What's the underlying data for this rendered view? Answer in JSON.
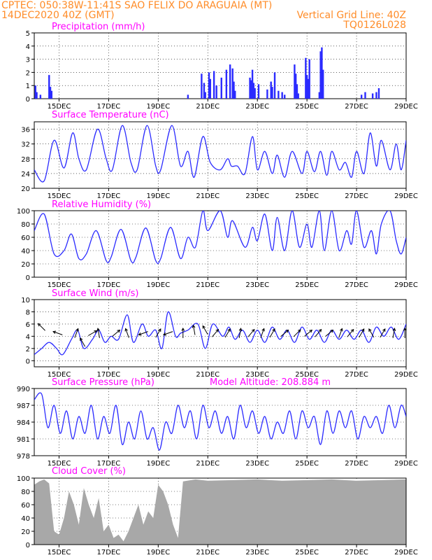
{
  "header": {
    "left_line1": "CPTEC:  050:38W-11:41S  SAO FELIX DO ARAGUAIA (MT)",
    "left_line2": "14DEC2020 40Z (GMT)",
    "right_line2": "Vertical Grid Line: 40Z",
    "right_line3": "TQ0126L028"
  },
  "colors": {
    "header": "#ff8c28",
    "panel_title": "#ff00ff",
    "series": "#2b2bff",
    "cloud_fill": "#a8a8a8",
    "precip_bar": "#2b2bff",
    "arrow": "#000000"
  },
  "x_ticks": [
    "15DEC",
    "17DEC",
    "19DEC",
    "21DEC",
    "23DEC",
    "25DEC",
    "27DEC",
    "29DEC"
  ],
  "x_start_day": 14.0,
  "x_end_day": 29.0,
  "x_tick_days": [
    15,
    17,
    19,
    21,
    23,
    25,
    27,
    29
  ],
  "panels": {
    "precip": {
      "title": "Precipitation (mm/h)",
      "yticks": [
        "0",
        "1",
        "2",
        "3",
        "4",
        "5"
      ],
      "ylim": [
        0,
        5
      ]
    },
    "temp": {
      "title": "Surface Temperature (nC)",
      "yticks": [
        "20",
        "24",
        "28",
        "32",
        "36"
      ],
      "ylim": [
        20,
        38
      ]
    },
    "rh": {
      "title": "Relative Humidity (%)",
      "yticks": [
        "0",
        "20",
        "40",
        "60",
        "80",
        "100"
      ],
      "ylim": [
        0,
        100
      ]
    },
    "wind": {
      "title": "Surface Wind (m/s)",
      "yticks": [
        "0",
        "2",
        "4",
        "6",
        "8",
        "10"
      ],
      "ylim": [
        -1,
        10
      ]
    },
    "pres": {
      "title": "Surface Pressure (hPa)",
      "subtitle": "Model Altitude: 208.884 m",
      "yticks": [
        "978",
        "981",
        "984",
        "987",
        "990"
      ],
      "ylim": [
        978,
        990
      ]
    },
    "cloud": {
      "title": "Cloud Cover (%)",
      "yticks": [
        "0",
        "20",
        "40",
        "60",
        "80",
        "100"
      ],
      "ylim": [
        0,
        100
      ]
    }
  },
  "chart_data": [
    {
      "type": "bar",
      "title": "Precipitation (mm/h)",
      "x_unit": "day of December 2020",
      "x": [
        14.05,
        14.1,
        14.25,
        14.6,
        14.65,
        14.7,
        20.2,
        20.75,
        20.85,
        20.9,
        21.05,
        21.1,
        21.25,
        21.35,
        21.55,
        21.75,
        21.9,
        22.0,
        22.05,
        22.1,
        22.7,
        22.75,
        22.8,
        22.85,
        22.9,
        23.05,
        23.4,
        23.55,
        23.6,
        23.7,
        23.85,
        24.0,
        24.1,
        24.5,
        24.55,
        24.6,
        24.65,
        24.95,
        25.0,
        25.05,
        25.1,
        25.5,
        25.55,
        25.6,
        25.65,
        27.2,
        27.35,
        27.65,
        27.8,
        27.9
      ],
      "values": [
        1.0,
        0.5,
        0.3,
        1.8,
        0.9,
        0.6,
        0.3,
        1.9,
        1.2,
        0.5,
        2.0,
        1.5,
        2.1,
        1.0,
        1.6,
        2.2,
        2.6,
        2.3,
        1.3,
        0.6,
        1.6,
        1.4,
        2.2,
        1.2,
        0.8,
        1.1,
        0.7,
        1.3,
        0.9,
        2.0,
        0.6,
        0.5,
        0.3,
        2.6,
        1.9,
        1.1,
        0.4,
        3.1,
        1.8,
        1.5,
        3.0,
        0.5,
        3.6,
        3.9,
        2.2,
        0.3,
        0.5,
        0.4,
        0.5,
        0.8
      ],
      "ylim": [
        0,
        5
      ]
    },
    {
      "type": "line",
      "title": "Surface Temperature (nC)",
      "x": [
        14.0,
        14.4,
        14.8,
        15.2,
        15.55,
        15.8,
        16.1,
        16.55,
        16.9,
        17.15,
        17.55,
        17.9,
        18.15,
        18.55,
        18.9,
        19.1,
        19.55,
        19.9,
        20.2,
        20.45,
        20.8,
        21.1,
        21.5,
        21.8,
        21.95,
        22.2,
        22.5,
        22.8,
        23.0,
        23.3,
        23.6,
        23.8,
        24.1,
        24.4,
        24.8,
        25.0,
        25.3,
        25.55,
        25.8,
        26.0,
        26.3,
        26.55,
        26.8,
        27.0,
        27.3,
        27.55,
        27.8,
        28.0,
        28.35,
        28.6,
        28.8,
        29.0
      ],
      "values": [
        25,
        22,
        33,
        25.5,
        35,
        28,
        25,
        36,
        28,
        25,
        37,
        27,
        25,
        37,
        26,
        25,
        37,
        26,
        30,
        23,
        34,
        27,
        25,
        28,
        26,
        26,
        24,
        34,
        25,
        30,
        24,
        29,
        23,
        30,
        24,
        30,
        24.5,
        30,
        23.5,
        30,
        25,
        27,
        23,
        30,
        24,
        35,
        26,
        33,
        25,
        32,
        25,
        33
      ],
      "ylim": [
        20,
        38
      ]
    },
    {
      "type": "line",
      "title": "Relative Humidity (%)",
      "x": [
        14.0,
        14.4,
        14.8,
        15.2,
        15.5,
        15.8,
        16.1,
        16.5,
        16.9,
        17.1,
        17.5,
        17.9,
        18.1,
        18.5,
        18.9,
        19.1,
        19.5,
        19.9,
        20.2,
        20.5,
        20.8,
        21.0,
        21.5,
        21.8,
        22.0,
        22.5,
        22.8,
        23.0,
        23.3,
        23.6,
        23.8,
        24.1,
        24.4,
        24.7,
        25.0,
        25.2,
        25.5,
        25.7,
        26.0,
        26.3,
        26.6,
        26.8,
        27.0,
        27.3,
        27.6,
        27.8,
        28.0,
        28.35,
        28.6,
        28.8,
        29.0
      ],
      "values": [
        70,
        95,
        35,
        40,
        65,
        28,
        35,
        70,
        25,
        30,
        72,
        25,
        30,
        74,
        25,
        28,
        75,
        28,
        60,
        45,
        100,
        70,
        100,
        60,
        85,
        45,
        75,
        55,
        95,
        40,
        90,
        40,
        100,
        45,
        80,
        45,
        100,
        40,
        100,
        40,
        70,
        50,
        100,
        45,
        70,
        35,
        80,
        100,
        55,
        35,
        60
      ],
      "ylim": [
        0,
        100
      ]
    },
    {
      "type": "line",
      "title": "Surface Wind (m/s)",
      "x": [
        14.0,
        14.3,
        14.6,
        14.9,
        15.15,
        15.5,
        15.75,
        16.0,
        16.35,
        16.6,
        16.85,
        17.1,
        17.4,
        17.75,
        18.0,
        18.35,
        18.6,
        18.9,
        19.15,
        19.4,
        19.7,
        19.9,
        20.2,
        20.6,
        20.9,
        21.2,
        21.6,
        21.85,
        22.1,
        22.4,
        22.7,
        23.0,
        23.3,
        23.6,
        23.9,
        24.2,
        24.5,
        24.8,
        25.1,
        25.4,
        25.7,
        26.0,
        26.3,
        26.6,
        26.9,
        27.2,
        27.5,
        27.8,
        28.1,
        28.4,
        28.7,
        29.0
      ],
      "values": [
        1,
        2,
        3,
        2,
        1,
        3.5,
        5,
        2,
        3.5,
        5,
        3,
        4,
        3.5,
        7.5,
        3,
        6,
        4,
        5,
        2,
        8,
        4,
        4.5,
        5,
        6,
        2,
        6,
        4,
        5.5,
        3.5,
        5,
        3,
        5,
        3,
        5.5,
        3.5,
        5,
        3,
        5.5,
        3.5,
        5,
        3,
        5,
        3.5,
        5,
        3.5,
        5,
        3,
        5.5,
        4,
        5.5,
        3.5,
        6
      ],
      "ylim": [
        -1,
        10
      ]
    },
    {
      "type": "line",
      "title": "Surface Pressure (hPa)",
      "x": [
        14.0,
        14.3,
        14.55,
        14.8,
        15.05,
        15.3,
        15.55,
        15.8,
        16.05,
        16.3,
        16.55,
        16.8,
        17.05,
        17.3,
        17.55,
        17.8,
        18.05,
        18.3,
        18.55,
        18.8,
        19.05,
        19.3,
        19.55,
        19.8,
        20.05,
        20.3,
        20.55,
        20.8,
        21.05,
        21.3,
        21.55,
        21.8,
        22.05,
        22.3,
        22.55,
        22.8,
        23.05,
        23.3,
        23.55,
        23.8,
        24.05,
        24.3,
        24.55,
        24.8,
        25.05,
        25.3,
        25.55,
        25.8,
        26.05,
        26.3,
        26.55,
        26.8,
        27.05,
        27.3,
        27.55,
        27.8,
        28.05,
        28.3,
        28.55,
        28.8,
        29.0
      ],
      "values": [
        988,
        989,
        983,
        987,
        982,
        986,
        981,
        985,
        982,
        987,
        981,
        985,
        982,
        987,
        980,
        984,
        981,
        986,
        981,
        983,
        979,
        984,
        982,
        987,
        983,
        986,
        981,
        987,
        983,
        986,
        982,
        985,
        981,
        987,
        983,
        986,
        982,
        985,
        981,
        984,
        982,
        986,
        981,
        986,
        983,
        985,
        980,
        986,
        982,
        986,
        983,
        986,
        981,
        985,
        983,
        985,
        982,
        987,
        983,
        987,
        985
      ],
      "ylim": [
        978,
        990
      ]
    },
    {
      "type": "area",
      "title": "Cloud Cover (%)",
      "x": [
        14.0,
        14.2,
        14.4,
        14.6,
        14.8,
        15.0,
        15.2,
        15.4,
        15.6,
        15.8,
        16.0,
        16.2,
        16.4,
        16.6,
        16.8,
        17.0,
        17.2,
        17.4,
        17.6,
        17.8,
        18.0,
        18.2,
        18.4,
        18.6,
        18.8,
        19.0,
        19.2,
        19.4,
        19.6,
        19.8,
        20.0,
        20.5,
        21.0,
        22.0,
        23.0,
        24.0,
        25.0,
        26.0,
        27.0,
        28.0,
        29.0
      ],
      "values": [
        90,
        95,
        98,
        92,
        20,
        15,
        40,
        80,
        60,
        30,
        85,
        60,
        40,
        70,
        20,
        30,
        10,
        15,
        5,
        20,
        40,
        60,
        30,
        50,
        40,
        90,
        80,
        60,
        30,
        10,
        95,
        98,
        96,
        97,
        98,
        96,
        97,
        98,
        96,
        97,
        98
      ],
      "ylim": [
        0,
        100
      ]
    }
  ],
  "wind_arrows": [
    {
      "day": 14.3,
      "speed": 5.5,
      "dir": 135
    },
    {
      "day": 14.95,
      "speed": 4.5,
      "dir": 160
    },
    {
      "day": 15.7,
      "speed": 4.5,
      "dir": 70
    },
    {
      "day": 15.95,
      "speed": 3.0,
      "dir": 120
    },
    {
      "day": 16.35,
      "speed": 4.5,
      "dir": 30
    },
    {
      "day": 16.6,
      "speed": 4.5,
      "dir": 100
    },
    {
      "day": 17.3,
      "speed": 4.5,
      "dir": 40
    },
    {
      "day": 17.75,
      "speed": 4.5,
      "dir": 110
    },
    {
      "day": 18.4,
      "speed": 4.5,
      "dir": 200
    },
    {
      "day": 19.0,
      "speed": 4.5,
      "dir": 60
    },
    {
      "day": 19.4,
      "speed": 4.5,
      "dir": 200
    },
    {
      "day": 20.0,
      "speed": 4.5,
      "dir": 90
    },
    {
      "day": 20.45,
      "speed": 5.0,
      "dir": 100
    },
    {
      "day": 20.9,
      "speed": 5.0,
      "dir": 120
    },
    {
      "day": 21.3,
      "speed": 4.5,
      "dir": 50
    },
    {
      "day": 21.8,
      "speed": 4.5,
      "dir": 60
    },
    {
      "day": 22.3,
      "speed": 4.5,
      "dir": 80
    },
    {
      "day": 22.75,
      "speed": 4.5,
      "dir": 50
    },
    {
      "day": 23.2,
      "speed": 4.5,
      "dir": 70
    },
    {
      "day": 23.6,
      "speed": 4.5,
      "dir": 60
    },
    {
      "day": 24.1,
      "speed": 4.5,
      "dir": 40
    },
    {
      "day": 24.6,
      "speed": 4.5,
      "dir": 45
    },
    {
      "day": 25.05,
      "speed": 4.5,
      "dir": 40
    },
    {
      "day": 25.45,
      "speed": 4.5,
      "dir": 50
    },
    {
      "day": 25.9,
      "speed": 4.5,
      "dir": 40
    },
    {
      "day": 26.35,
      "speed": 4.5,
      "dir": 70
    },
    {
      "day": 26.75,
      "speed": 4.5,
      "dir": 50
    },
    {
      "day": 27.2,
      "speed": 4.5,
      "dir": 60
    },
    {
      "day": 27.6,
      "speed": 4.5,
      "dir": 120
    },
    {
      "day": 28.05,
      "speed": 4.5,
      "dir": 60
    },
    {
      "day": 28.5,
      "speed": 4.5,
      "dir": 80
    },
    {
      "day": 28.95,
      "speed": 4.5,
      "dir": 90
    }
  ]
}
